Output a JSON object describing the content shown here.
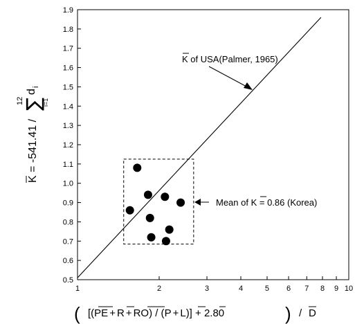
{
  "chart_data": {
    "type": "scatter",
    "title": "",
    "xscale": "log",
    "xlim": [
      1,
      10
    ],
    "ylim": [
      0.5,
      1.9
    ],
    "x_ticks": [
      {
        "value": 1,
        "label": "1"
      },
      {
        "value": 2,
        "label": "2"
      },
      {
        "value": 3,
        "label": "3"
      },
      {
        "value": 4,
        "label": "4"
      },
      {
        "value": 5,
        "label": "5"
      },
      {
        "value": 6,
        "label": "6"
      },
      {
        "value": 7,
        "label": "7"
      },
      {
        "value": 8,
        "label": "8"
      },
      {
        "value": 9,
        "label": "9"
      },
      {
        "value": 10,
        "label": "10"
      }
    ],
    "y_ticks": [
      "0.5",
      "0.6",
      "0.7",
      "0.8",
      "0.9",
      "1.0",
      "1.1",
      "1.2",
      "1.3",
      "1.4",
      "1.5",
      "1.6",
      "1.7",
      "1.8",
      "1.9"
    ],
    "xlabel": "( [(PE + R + RO) / (P + L)] + 2.80 ) / D",
    "ylabel": "K = -541.41 / Σ_{i=1}^{12} d_i",
    "series": [
      {
        "type": "scatter",
        "points": [
          {
            "x": 1.66,
            "y": 1.08
          },
          {
            "x": 1.82,
            "y": 0.94
          },
          {
            "x": 2.1,
            "y": 0.93
          },
          {
            "x": 2.4,
            "y": 0.9
          },
          {
            "x": 1.56,
            "y": 0.86
          },
          {
            "x": 1.85,
            "y": 0.82
          },
          {
            "x": 2.18,
            "y": 0.76
          },
          {
            "x": 1.87,
            "y": 0.72
          },
          {
            "x": 2.12,
            "y": 0.7
          }
        ]
      },
      {
        "type": "line",
        "points": [
          {
            "x": 1,
            "y": 0.51
          },
          {
            "x": 7.9,
            "y": 1.86
          }
        ]
      }
    ],
    "box": {
      "x": [
        1.48,
        2.68
      ],
      "y": [
        0.685,
        1.125
      ]
    },
    "annotations": {
      "usa_line": "K of USA(Palmer, 1965)",
      "korea_mean": "Mean of K = 0.86 (Korea)"
    }
  },
  "labels": {
    "ylabel_main": "K = -541.41 /",
    "ylabel_sum": "∑",
    "ylabel_sum_top": "12",
    "ylabel_sum_bottom": "i=1",
    "ylabel_d": "d",
    "ylabel_i": "i",
    "paren_open": "(",
    "paren_close": ")",
    "x_p1": "[(",
    "x_PE": "PE",
    "x_p2": "+",
    "x_R": "R",
    "x_p3": "+",
    "x_RO": "RO",
    "x_p4": ") / (",
    "x_P": "P",
    "x_p5": "+",
    "x_L": "L",
    "x_p6": ")] + 2.80",
    "x_slash": "/",
    "x_D": "D",
    "ann_usa_K": "K",
    "ann_usa_rest": " of USA(Palmer, 1965)",
    "ann_korea_pre": "Mean of ",
    "ann_korea_K": "K",
    "ann_korea_rest": " = 0.86 (Korea)"
  }
}
